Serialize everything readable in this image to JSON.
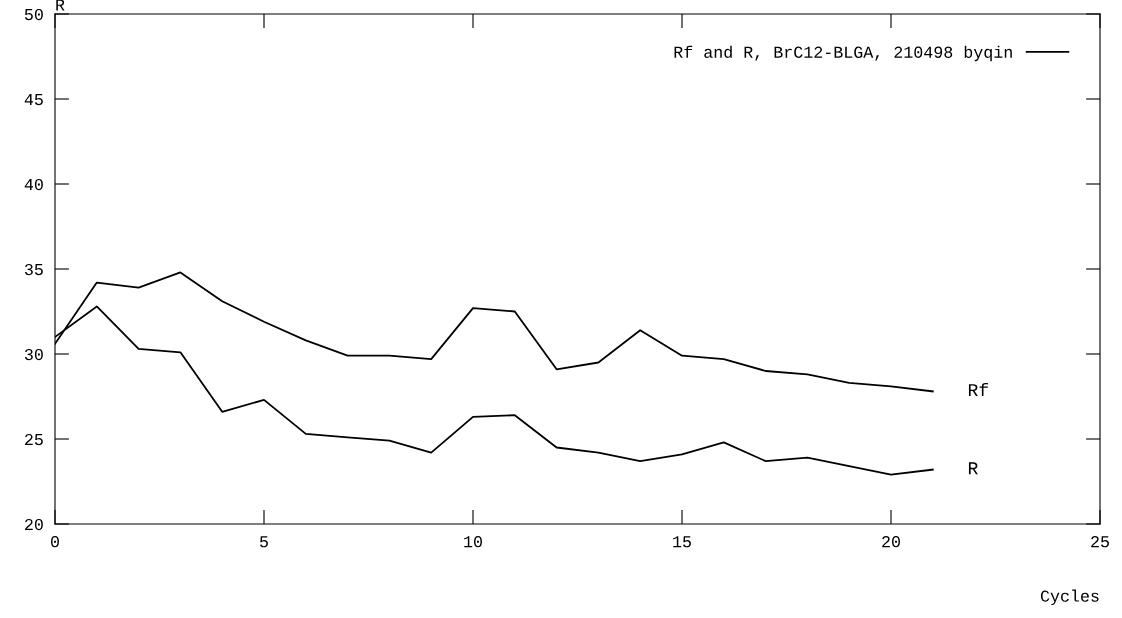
{
  "chart_data": {
    "type": "line",
    "xlabel": "Cycles",
    "ylabel": "R",
    "legend": "top right",
    "x": [
      0,
      1,
      2,
      3,
      4,
      5,
      6,
      7,
      8,
      9,
      10,
      11,
      12,
      13,
      14,
      15,
      16,
      17,
      18,
      19,
      20,
      21
    ],
    "series": [
      {
        "name": "Rf and R, BrC12-BLGA, 210498 byqin",
        "color": "#000000",
        "values": [
          30.6,
          34.2,
          33.9,
          34.8,
          33.1,
          31.9,
          30.8,
          29.9,
          29.9,
          29.7,
          32.7,
          32.5,
          29.1,
          29.5,
          31.4,
          29.9,
          29.7,
          29.0,
          28.8,
          28.3,
          28.1,
          27.8
        ]
      },
      {
        "color": "#000000",
        "values": [
          31.0,
          32.8,
          30.3,
          30.1,
          26.6,
          27.3,
          25.3,
          25.1,
          24.9,
          24.2,
          26.3,
          26.4,
          24.5,
          24.2,
          23.7,
          24.1,
          24.8,
          23.7,
          23.9,
          23.4,
          22.9,
          23.2
        ]
      }
    ],
    "xlim": [
      0,
      25
    ],
    "xticks": [
      0,
      5,
      10,
      15,
      20,
      25
    ],
    "ylim": [
      20,
      50
    ],
    "yticks": [
      20,
      25,
      30,
      35,
      40,
      45,
      50
    ],
    "annotations": [
      {
        "text": "Rf",
        "x": 21,
        "y": 27.8
      },
      {
        "text": "R",
        "x": 21,
        "y": 23.2
      }
    ],
    "grid": false,
    "marker": "none",
    "line_style": "solid"
  }
}
